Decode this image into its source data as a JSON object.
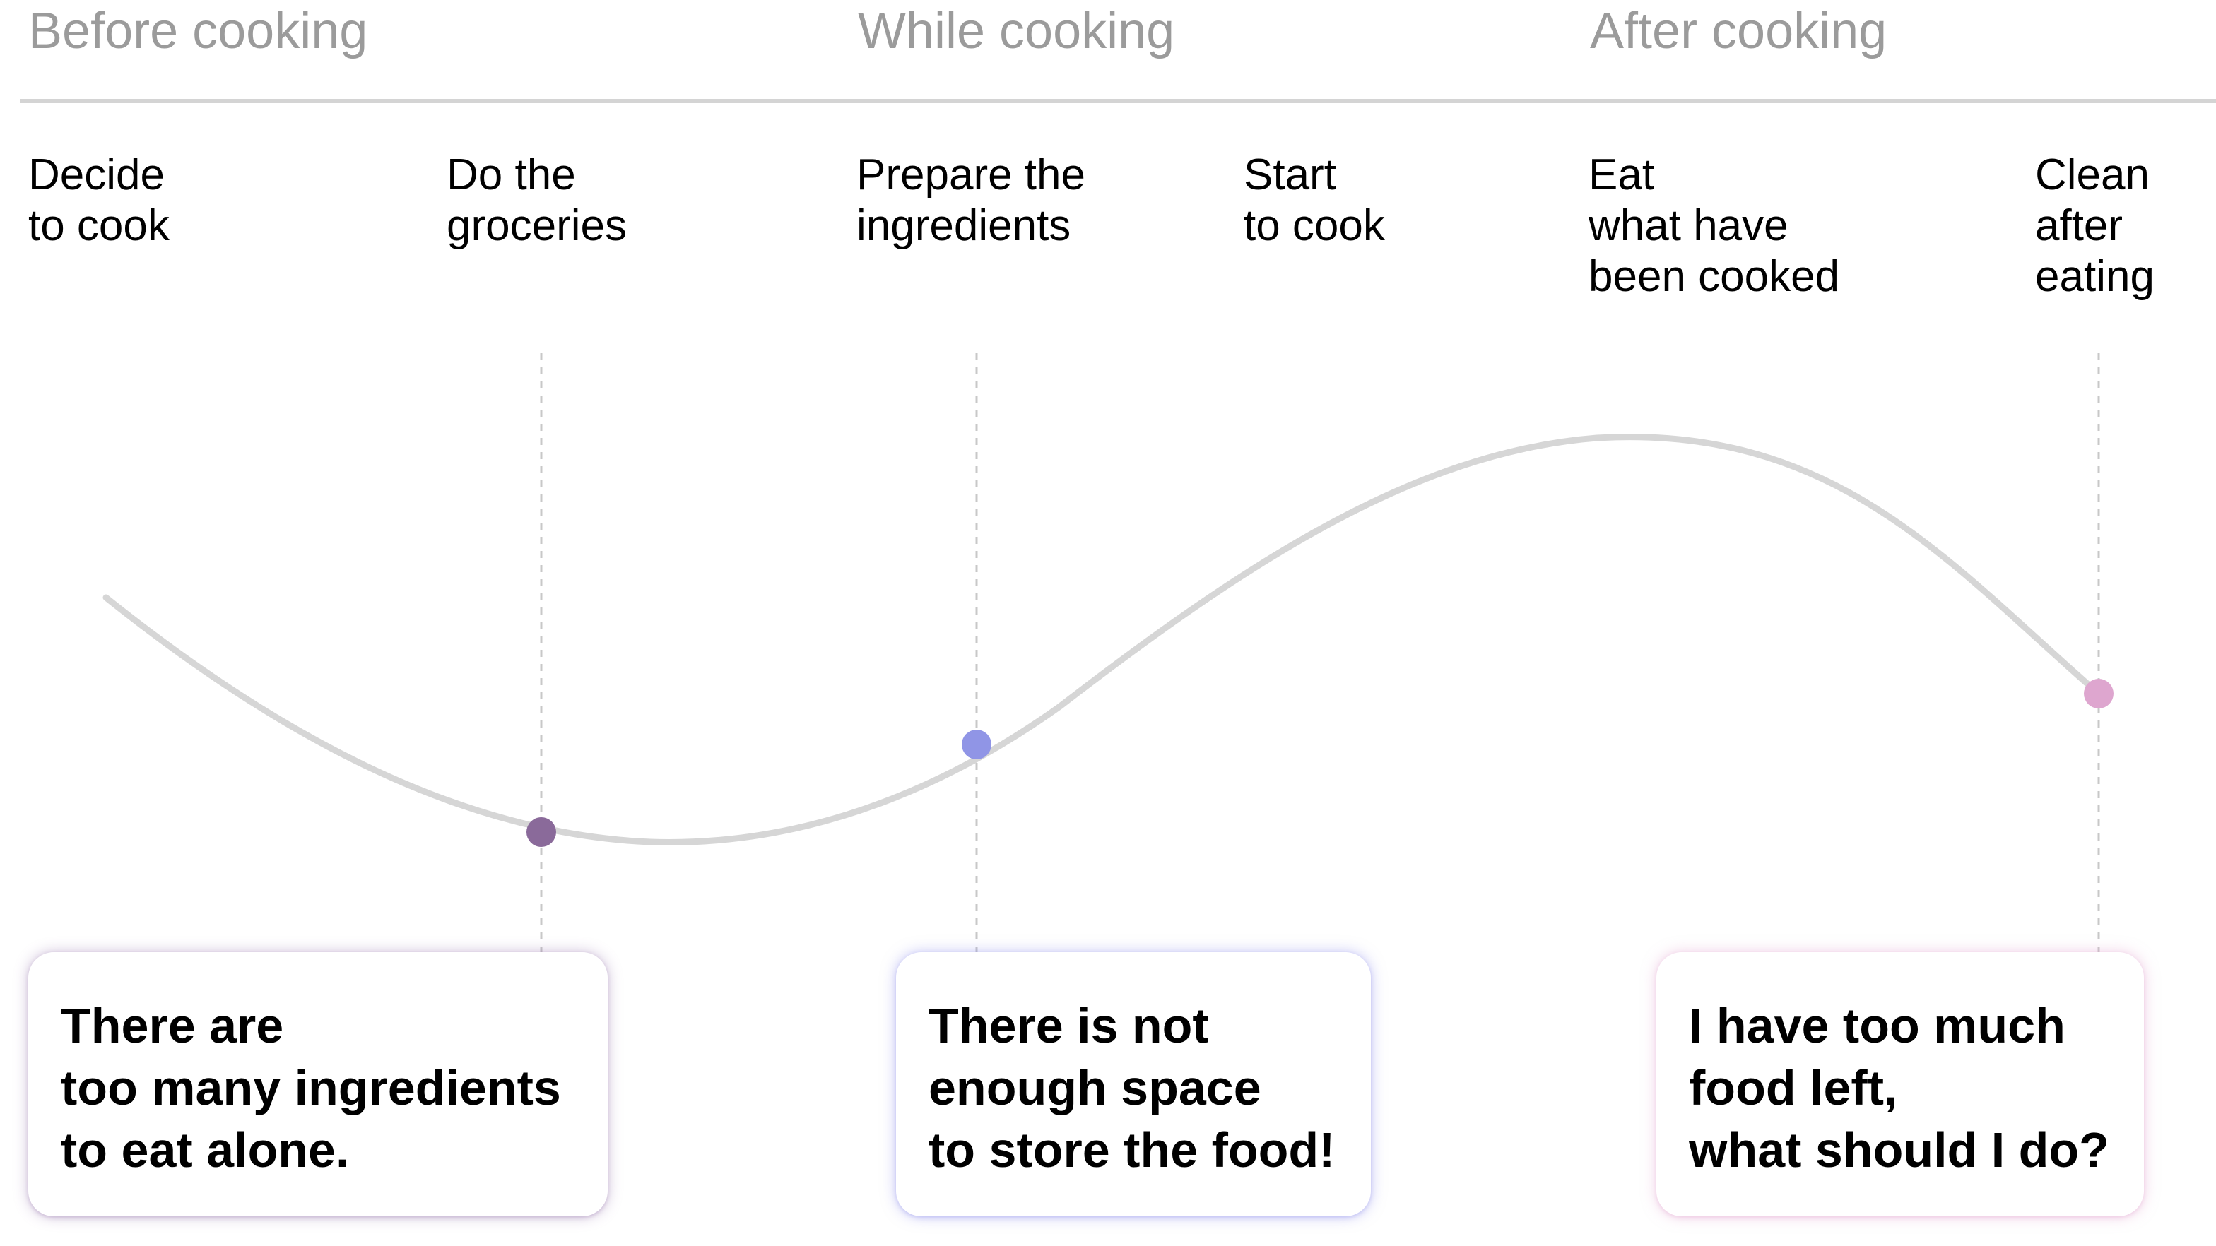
{
  "phases": {
    "before": "Before cooking",
    "while": "While cooking",
    "after": "After cooking"
  },
  "steps": [
    {
      "lines": [
        "Decide",
        "to cook"
      ]
    },
    {
      "lines": [
        "Do the",
        "groceries"
      ]
    },
    {
      "lines": [
        "Prepare the",
        "ingredients"
      ]
    },
    {
      "lines": [
        "Start",
        "to cook"
      ]
    },
    {
      "lines": [
        "Eat",
        "what have",
        "been cooked"
      ]
    },
    {
      "lines": [
        "Clean",
        "after",
        "eating"
      ]
    }
  ],
  "pain_points": [
    {
      "lines": [
        "There are",
        "too many ingredients",
        "to eat alone."
      ],
      "color": "#8a6a9a"
    },
    {
      "lines": [
        "There is not",
        "enough space",
        "to store the food!"
      ],
      "color": "#9095e6"
    },
    {
      "lines": [
        "I have too much",
        "food left,",
        "what should I do?"
      ],
      "color": "#dea6cf"
    }
  ],
  "colors": {
    "phase_text": "#9b9b9b",
    "divider": "#d4d4d4",
    "curve": "#d6d6d6",
    "guide": "#c8c8c8"
  }
}
